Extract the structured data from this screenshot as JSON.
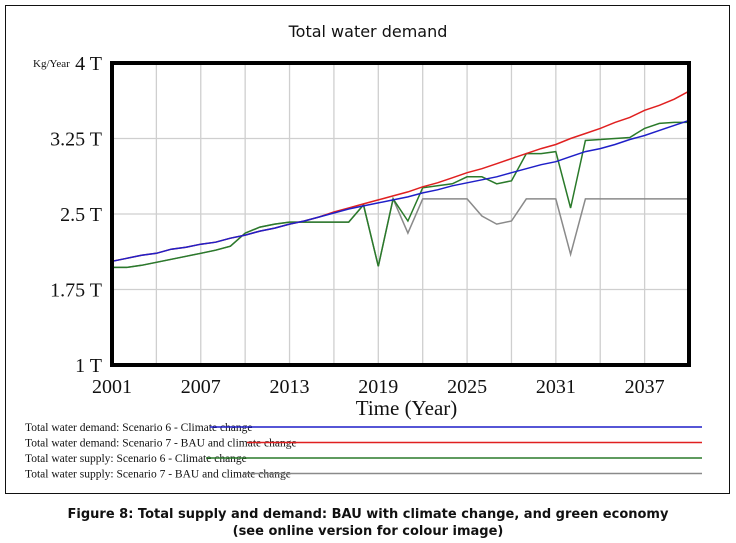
{
  "chart_data": {
    "type": "line",
    "title": "Total water demand",
    "ylabel_unit": "Kg/Year",
    "xlabel": "Time (Year)",
    "xlim": [
      2001,
      2040
    ],
    "ylim": [
      1,
      4
    ],
    "y_unit_suffix": "T",
    "yticks": [
      1,
      1.75,
      2.5,
      3.25,
      4
    ],
    "ytick_labels": [
      "1 T",
      "1.75 T",
      "2.5 T",
      "3.25 T",
      "4 T"
    ],
    "xticks": [
      2001,
      2007,
      2013,
      2019,
      2025,
      2031,
      2037
    ],
    "xtick_labels": [
      "2001",
      "2007",
      "2013",
      "2019",
      "2025",
      "2031",
      "2037"
    ],
    "grid": true,
    "legend_position": "bottom",
    "x": [
      2001,
      2002,
      2003,
      2004,
      2005,
      2006,
      2007,
      2008,
      2009,
      2010,
      2011,
      2012,
      2013,
      2014,
      2015,
      2016,
      2017,
      2018,
      2019,
      2020,
      2021,
      2022,
      2023,
      2024,
      2025,
      2026,
      2027,
      2028,
      2029,
      2030,
      2031,
      2032,
      2033,
      2034,
      2035,
      2036,
      2037,
      2038,
      2039,
      2040
    ],
    "series": [
      {
        "name": "Total water demand: Scenario 6 - Climate change",
        "color": "#1f1fc8",
        "values": [
          2.03,
          2.06,
          2.09,
          2.11,
          2.15,
          2.17,
          2.2,
          2.22,
          2.26,
          2.29,
          2.33,
          2.36,
          2.4,
          2.43,
          2.47,
          2.51,
          2.55,
          2.58,
          2.61,
          2.64,
          2.67,
          2.71,
          2.74,
          2.78,
          2.81,
          2.84,
          2.87,
          2.91,
          2.95,
          2.99,
          3.02,
          3.07,
          3.12,
          3.15,
          3.19,
          3.24,
          3.28,
          3.33,
          3.38,
          3.43
        ]
      },
      {
        "name": "Total water demand: Scenario 7 - BAU and climate change",
        "color": "#e02020",
        "values": [
          2.03,
          2.06,
          2.09,
          2.11,
          2.15,
          2.17,
          2.2,
          2.22,
          2.26,
          2.29,
          2.33,
          2.36,
          2.4,
          2.43,
          2.47,
          2.52,
          2.56,
          2.6,
          2.64,
          2.68,
          2.72,
          2.77,
          2.81,
          2.86,
          2.91,
          2.95,
          3.0,
          3.05,
          3.1,
          3.15,
          3.19,
          3.25,
          3.3,
          3.35,
          3.41,
          3.46,
          3.53,
          3.58,
          3.64,
          3.72
        ]
      },
      {
        "name": "Total water supply: Scenario 6 - Climate change",
        "color": "#2a7a2a",
        "values": [
          1.97,
          1.97,
          1.99,
          2.02,
          2.05,
          2.08,
          2.11,
          2.14,
          2.18,
          2.31,
          2.37,
          2.4,
          2.42,
          2.42,
          2.42,
          2.42,
          2.42,
          2.59,
          1.98,
          2.65,
          2.43,
          2.76,
          2.78,
          2.8,
          2.87,
          2.87,
          2.8,
          2.83,
          3.1,
          3.1,
          3.12,
          2.56,
          3.23,
          3.24,
          3.25,
          3.26,
          3.35,
          3.4,
          3.41,
          3.41
        ]
      },
      {
        "name": "Total water supply: Scenario 7 - BAU and climate change",
        "color": "#8a8a8a",
        "values": [
          1.97,
          1.97,
          1.99,
          2.02,
          2.05,
          2.08,
          2.11,
          2.14,
          2.18,
          2.31,
          2.37,
          2.4,
          2.42,
          2.42,
          2.42,
          2.42,
          2.42,
          2.59,
          1.98,
          2.65,
          2.31,
          2.65,
          2.65,
          2.65,
          2.65,
          2.48,
          2.4,
          2.43,
          2.65,
          2.65,
          2.65,
          2.1,
          2.65,
          2.65,
          2.65,
          2.65,
          2.65,
          2.65,
          2.65,
          2.65
        ]
      }
    ]
  },
  "caption": {
    "line1": "Figure 8: Total supply and demand: BAU with climate change, and green economy",
    "line2": "(see online version for colour image)"
  }
}
